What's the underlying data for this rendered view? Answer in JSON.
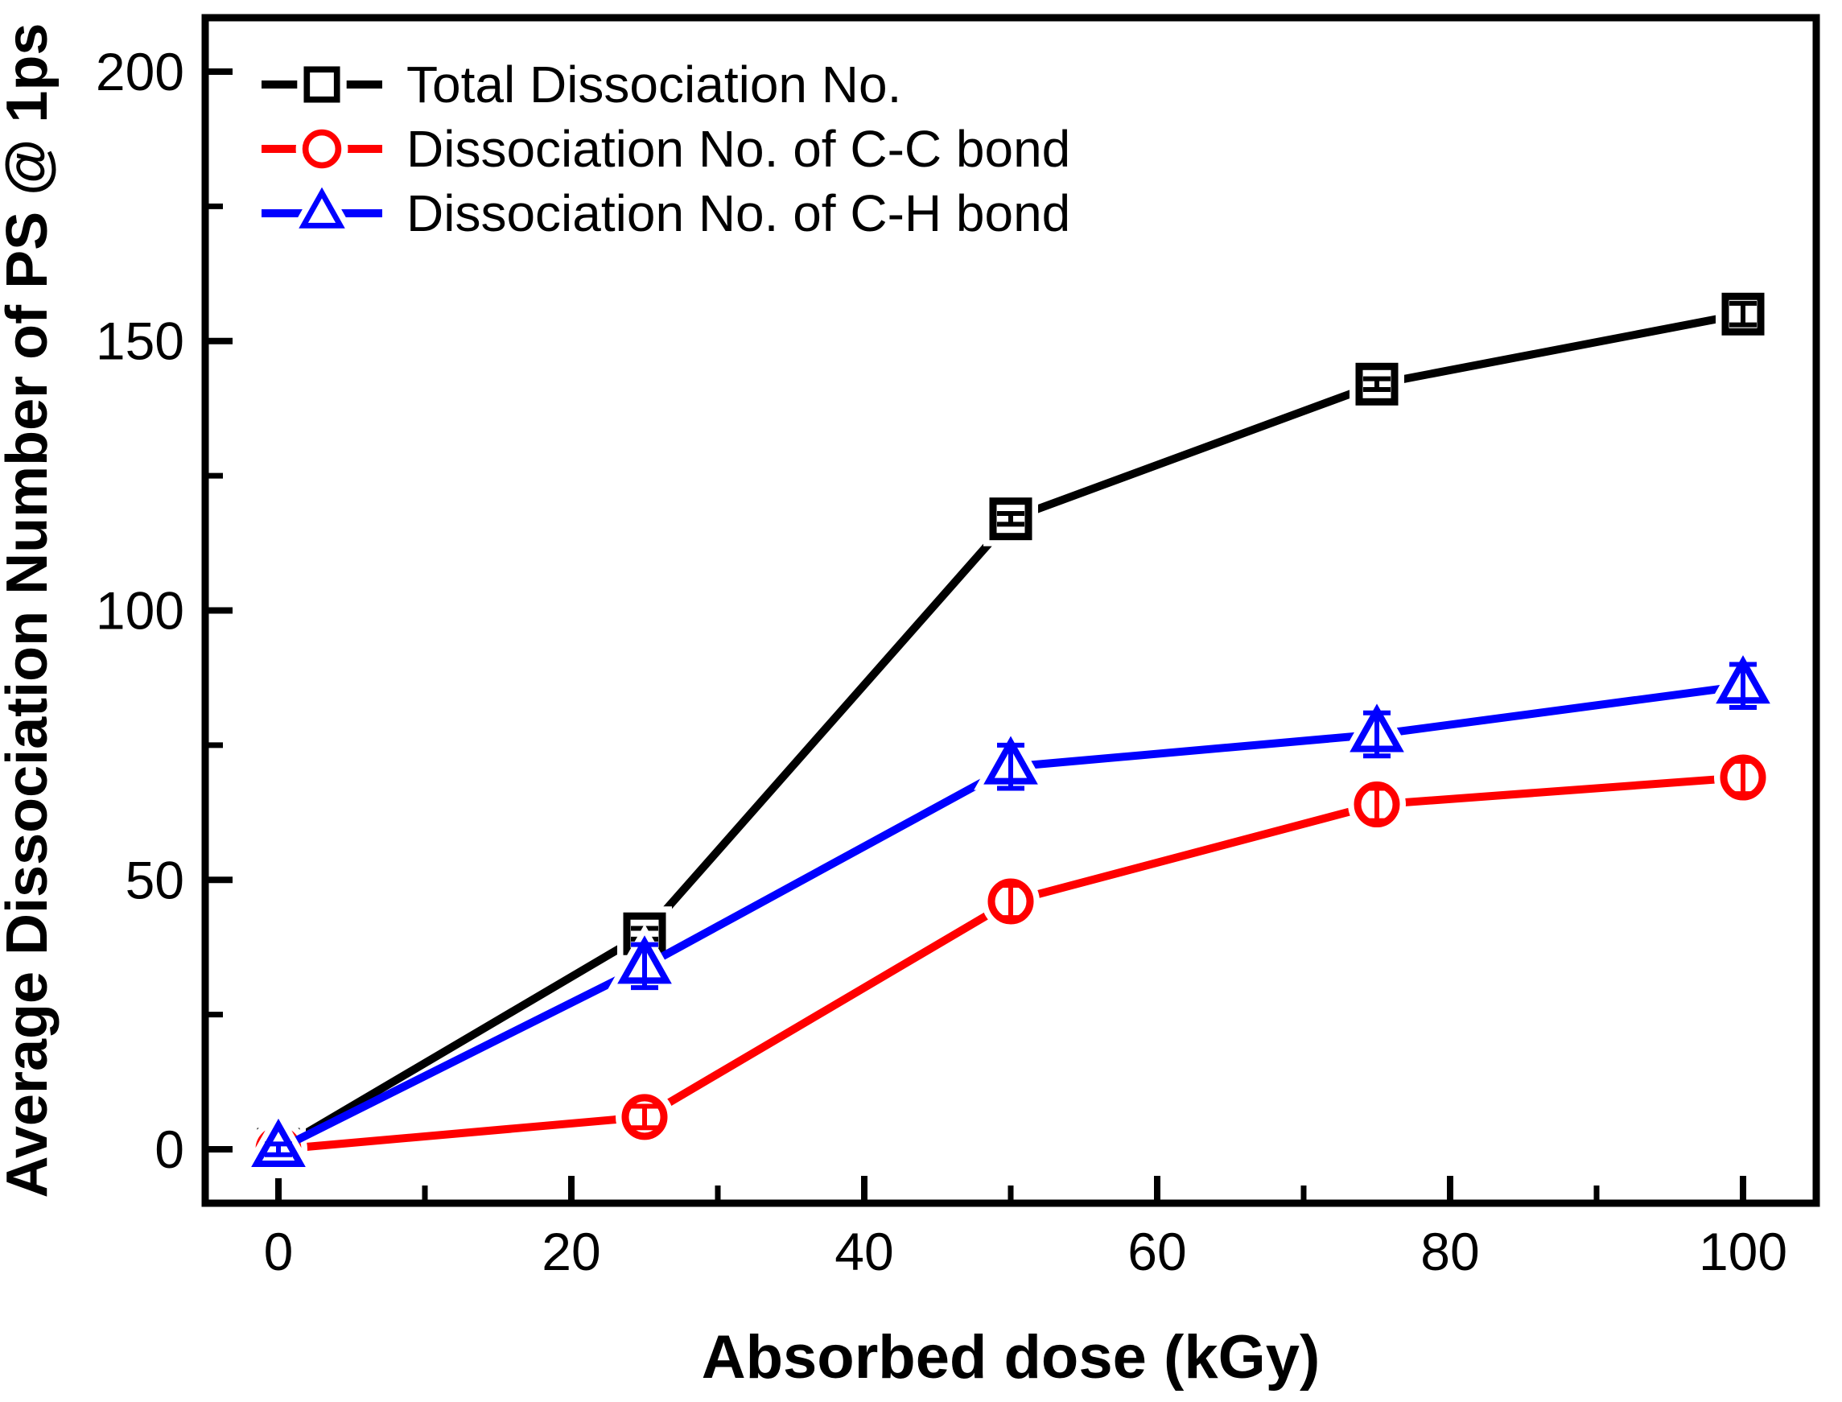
{
  "chart_data": {
    "type": "line",
    "title": "",
    "xlabel": "Absorbed dose (kGy)",
    "ylabel": "Average Dissociation Number of PS @ 1ps",
    "x": [
      0,
      25,
      50,
      75,
      100
    ],
    "series": [
      {
        "name": "Total Dissociation No.",
        "marker": "square",
        "marker_style": "open",
        "color": "#000000",
        "values": [
          0,
          40,
          117,
          142,
          155
        ],
        "errors": [
          0,
          1,
          1,
          1,
          2
        ]
      },
      {
        "name": "Dissociation No. of C-C bond",
        "marker": "circle",
        "marker_style": "open",
        "color": "#FF0000",
        "values": [
          0,
          6,
          46,
          64,
          69
        ],
        "errors": [
          0,
          2,
          3,
          3,
          3
        ]
      },
      {
        "name": "Dissociation No. of C-H bond",
        "marker": "triangle",
        "marker_style": "open",
        "color": "#0000FF",
        "values": [
          0,
          34,
          71,
          77,
          86
        ],
        "errors": [
          1,
          4,
          4,
          4,
          4
        ]
      }
    ],
    "x_ticks": [
      0,
      20,
      40,
      60,
      80,
      100
    ],
    "x_minor_ticks": [
      10,
      30,
      50,
      70,
      90
    ],
    "y_ticks": [
      0,
      50,
      100,
      150,
      200
    ],
    "y_minor_ticks": [
      25,
      75,
      125,
      175
    ],
    "xlim": [
      -5,
      105
    ],
    "ylim": [
      -10,
      210
    ],
    "grid": false,
    "legend_position": "top-left",
    "background_color": "#FFFFFF",
    "axis_color": "#000000"
  }
}
